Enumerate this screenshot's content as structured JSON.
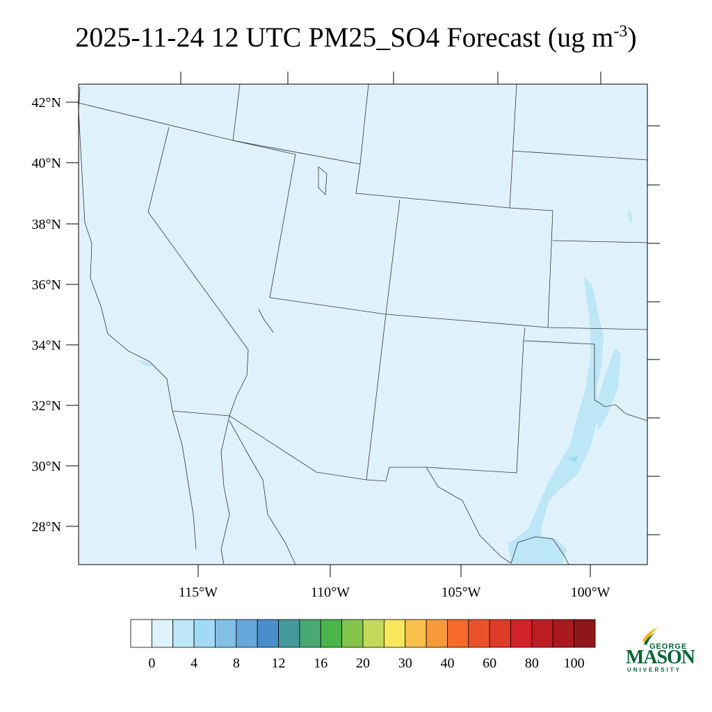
{
  "title": {
    "main": "2025-11-24 12 UTC PM25_SO4 Forecast (ug m",
    "superscript": "-3",
    "close": ")"
  },
  "map": {
    "variable": "PM25_SO4",
    "units": "ug m-3",
    "lat_labels": [
      "42°N",
      "40°N",
      "38°N",
      "36°N",
      "34°N",
      "32°N",
      "30°N",
      "28°N"
    ],
    "lon_labels": [
      "115°W",
      "110°W",
      "105°W",
      "100°W"
    ],
    "background_fill": "#dff2fb",
    "elevated_fill": "#bde6f7",
    "peak_fill": "#9fdaf5"
  },
  "colorbar": {
    "colors": [
      "#ffffff",
      "#dff2fb",
      "#bde6f7",
      "#a0daf5",
      "#82bfe6",
      "#66a8db",
      "#4a8fcb",
      "#459a9b",
      "#4aa873",
      "#4ab649",
      "#84c54e",
      "#c4d95a",
      "#f8e75a",
      "#f9c04d",
      "#f89a3a",
      "#f66b2b",
      "#ea532a",
      "#df3b27",
      "#d4222a",
      "#bd1c24",
      "#a91a1f",
      "#91161a"
    ],
    "labels": [
      "0",
      "4",
      "8",
      "12",
      "16",
      "20",
      "30",
      "40",
      "60",
      "80",
      "100"
    ]
  },
  "logo": {
    "line1": "GEORGE",
    "line2": "MASON",
    "line3": "UNIVERSITY",
    "color": "#006633",
    "accent": "#f2b800"
  }
}
